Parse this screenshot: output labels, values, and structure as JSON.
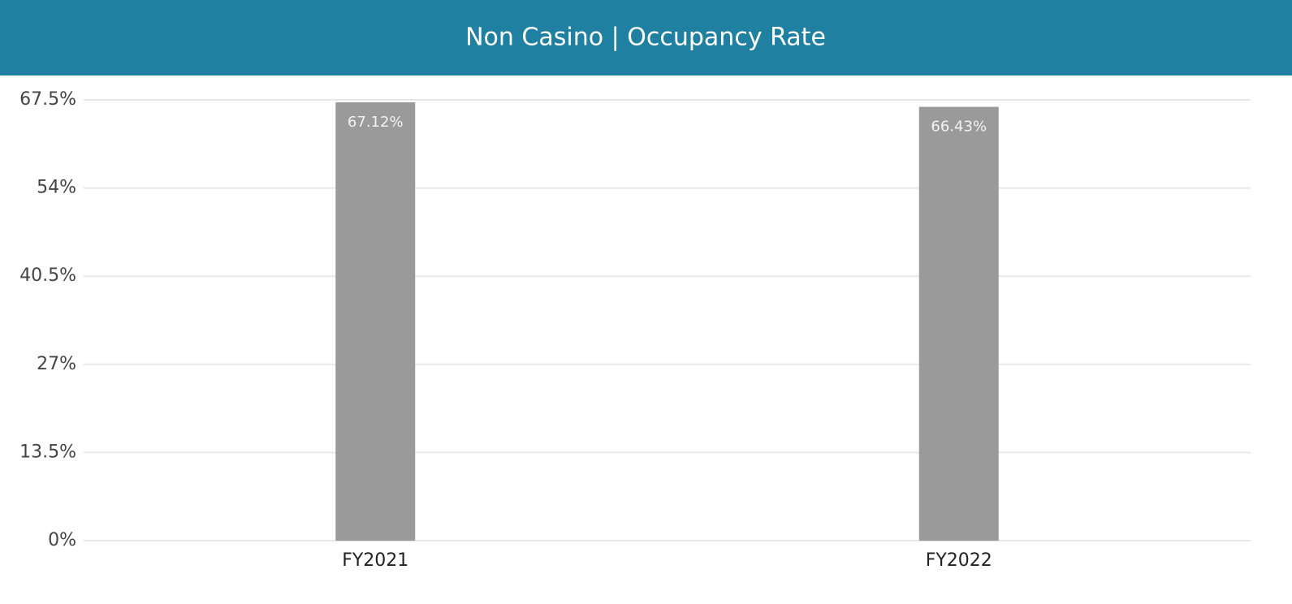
{
  "chart_data": {
    "type": "bar",
    "title": "Non Casino | Occupancy Rate",
    "categories": [
      "FY2021",
      "FY2022"
    ],
    "values": [
      67.12,
      66.43
    ],
    "value_labels": [
      "67.12%",
      "66.43%"
    ],
    "color": "#9a9a9a",
    "ylim": [
      0,
      67.5
    ],
    "yticks": [
      {
        "value": 0,
        "label": "0%"
      },
      {
        "value": 13.5,
        "label": "13.5%"
      },
      {
        "value": 27,
        "label": "27%"
      },
      {
        "value": 40.5,
        "label": "40.5%"
      },
      {
        "value": 54,
        "label": "54%"
      },
      {
        "value": 67.5,
        "label": "67.5%"
      }
    ],
    "grid": true
  }
}
